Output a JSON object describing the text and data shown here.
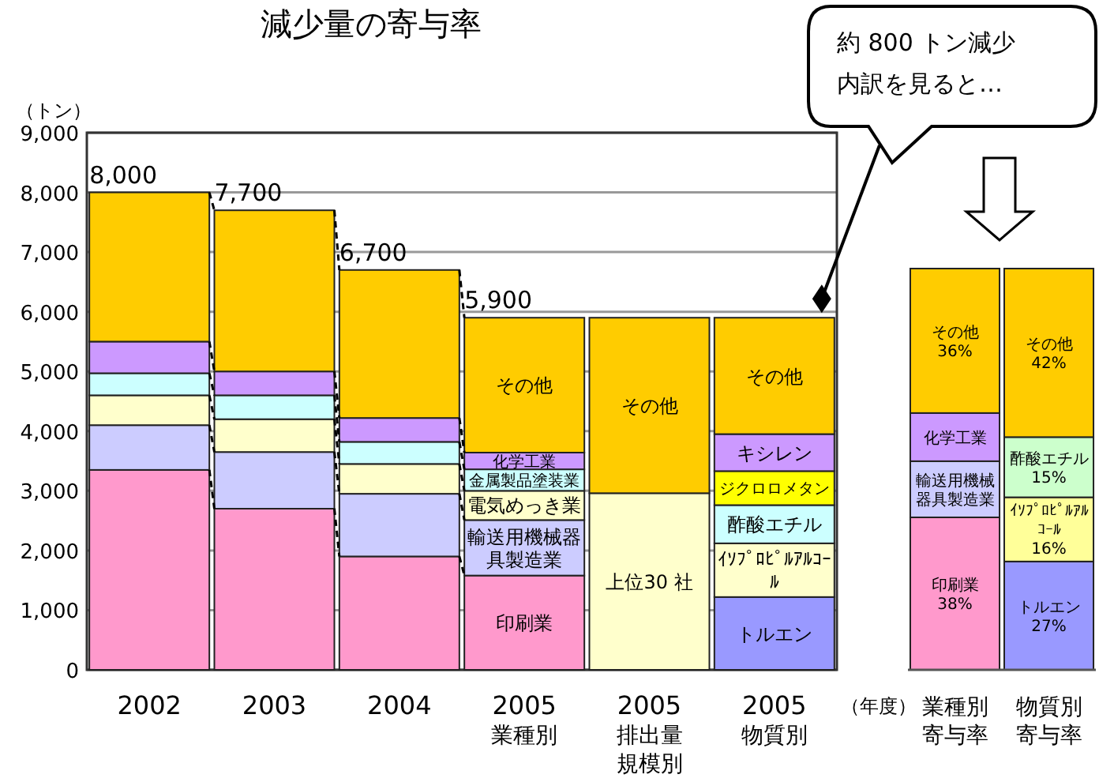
{
  "chart_data": [
    {
      "type": "bar",
      "title": "減少量の寄与率",
      "ylabel": "（トン）",
      "xlabel": "（年度）",
      "categories": [
        "2002",
        "2003",
        "2004",
        "2005業種別",
        "2005排出量規模別",
        "2005物質別"
      ],
      "stacked": true,
      "ylim": [
        0,
        9000
      ],
      "yticks": [
        0,
        {
          "value": 1000,
          "label": "1,000"
        },
        {
          "value": 2000,
          "label": "2,000"
        },
        {
          "value": 3000,
          "label": "3,000"
        },
        {
          "value": 4000,
          "label": "4,000"
        },
        {
          "value": 5000,
          "label": "5,000"
        },
        {
          "value": 6000,
          "label": "6,000"
        },
        {
          "value": 7000,
          "label": "7,000"
        },
        {
          "value": 8000,
          "label": "8,000"
        },
        {
          "value": 9000,
          "label": "9,000"
        }
      ],
      "grid": "y",
      "totals": [
        "8,000",
        "7,700",
        "6,700",
        "5,900",
        null,
        null
      ],
      "annotations": [
        "約 800 トン減少内訳を見ると…"
      ],
      "series": [
        {
          "name": "印刷業",
          "color": "#ff99cc",
          "values": [
            3350,
            2700,
            1900,
            1580,
            null,
            null
          ]
        },
        {
          "name": "輸送用機械器具製造業",
          "color": "#ccccff",
          "values": [
            750,
            950,
            1050,
            930,
            null,
            null
          ]
        },
        {
          "name": "電気めっき業",
          "color": "#ffffcc",
          "values": [
            500,
            550,
            500,
            490,
            null,
            null
          ]
        },
        {
          "name": "金属製品塗装業",
          "color": "#ccffff",
          "values": [
            370,
            400,
            370,
            360,
            null,
            null
          ]
        },
        {
          "name": "化学工業",
          "color": "#cc99ff",
          "values": [
            530,
            400,
            400,
            280,
            null,
            null
          ]
        },
        {
          "name": "その他",
          "color": "#ffcc00",
          "values": [
            2500,
            2700,
            2480,
            2260,
            null,
            null
          ]
        },
        {
          "name": "上位30 社",
          "color": "#ffffcc",
          "values": [
            null,
            null,
            null,
            null,
            2960,
            null
          ]
        },
        {
          "name": "その他",
          "color": "#ffcc00",
          "values": [
            null,
            null,
            null,
            null,
            2940,
            null
          ]
        },
        {
          "name": "トルエン",
          "color": "#9999ff",
          "values": [
            null,
            null,
            null,
            null,
            null,
            1220
          ]
        },
        {
          "name": "ｲｿﾌﾟﾛﾋﾟﾙｱﾙｺｰﾙ",
          "color": "#ffffcc",
          "values": [
            null,
            null,
            null,
            null,
            null,
            900
          ]
        },
        {
          "name": "酢酸エチル",
          "color": "#ccffff",
          "values": [
            null,
            null,
            null,
            null,
            null,
            640
          ]
        },
        {
          "name": "ジクロロメタン",
          "color": "#ffff00",
          "values": [
            null,
            null,
            null,
            null,
            null,
            570
          ]
        },
        {
          "name": "キシレン",
          "color": "#cc99ff",
          "values": [
            null,
            null,
            null,
            null,
            null,
            620
          ]
        },
        {
          "name": "その他",
          "color": "#ffcc00",
          "values": [
            null,
            null,
            null,
            null,
            null,
            1950
          ]
        }
      ]
    },
    {
      "type": "bar",
      "stacked": true,
      "categories": [
        "業種別寄与率",
        "物質別寄与率"
      ],
      "series": [
        {
          "name": "印刷業",
          "color": "#ff99cc",
          "values": [
            38,
            null
          ],
          "value_labels": [
            "38%",
            null
          ]
        },
        {
          "name": "輸送用機械器具製造業",
          "color": "#ccccff",
          "values": [
            14,
            null
          ]
        },
        {
          "name": "化学工業",
          "color": "#cc99ff",
          "values": [
            12,
            null
          ]
        },
        {
          "name": "その他",
          "color": "#ffcc00",
          "values": [
            36,
            null
          ],
          "value_labels": [
            "36%",
            null
          ]
        },
        {
          "name": "トルエン",
          "color": "#9999ff",
          "values": [
            null,
            27
          ],
          "value_labels": [
            null,
            "27%"
          ]
        },
        {
          "name": "ｲｿﾌﾟﾛﾋﾟﾙｱﾙｺｰﾙ",
          "color": "#ffff99",
          "values": [
            null,
            16
          ],
          "value_labels": [
            null,
            "16%"
          ]
        },
        {
          "name": "酢酸エチル",
          "color": "#ccffcc",
          "values": [
            null,
            15
          ],
          "value_labels": [
            null,
            "15%"
          ]
        },
        {
          "name": "その他",
          "color": "#ffcc00",
          "values": [
            null,
            42
          ],
          "value_labels": [
            null,
            "42%"
          ]
        }
      ]
    }
  ]
}
